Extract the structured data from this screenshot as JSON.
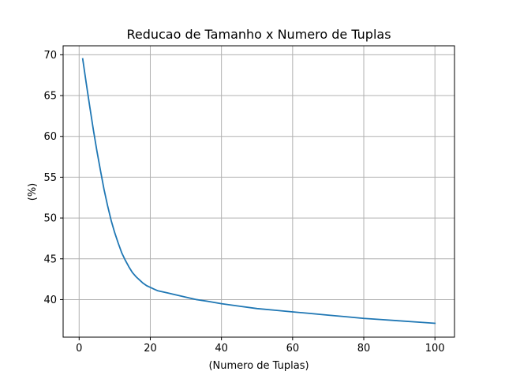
{
  "chart_data": {
    "type": "line",
    "title": "Reducao de Tamanho x Numero de Tuplas",
    "xlabel": "(Numero de Tuplas)",
    "ylabel": "(%)",
    "xlim": [
      -4.5,
      105.5
    ],
    "ylim": [
      35.4,
      71.1
    ],
    "x_ticks": [
      0,
      20,
      40,
      60,
      80,
      100
    ],
    "y_ticks": [
      40,
      45,
      50,
      55,
      60,
      65,
      70
    ],
    "grid": true,
    "legend": "none",
    "series": [
      {
        "color": "#1f77b4",
        "x": [
          1,
          2,
          3,
          4,
          5,
          6,
          7,
          8,
          9,
          10,
          11,
          12,
          13,
          14,
          15,
          16,
          17,
          18,
          19,
          20,
          21,
          22,
          23,
          24,
          25,
          27,
          30,
          33,
          36,
          40,
          45,
          50,
          55,
          60,
          65,
          70,
          75,
          80,
          85,
          90,
          95,
          100
        ],
        "y": [
          69.5,
          66.5,
          63.6,
          60.8,
          58.2,
          55.8,
          53.5,
          51.5,
          49.7,
          48.2,
          46.9,
          45.7,
          44.8,
          44.0,
          43.3,
          42.8,
          42.4,
          42.0,
          41.7,
          41.5,
          41.3,
          41.1,
          41.0,
          40.9,
          40.8,
          40.6,
          40.3,
          40.0,
          39.8,
          39.5,
          39.2,
          38.9,
          38.7,
          38.5,
          38.3,
          38.1,
          37.9,
          37.7,
          37.55,
          37.4,
          37.25,
          37.1
        ]
      }
    ]
  }
}
